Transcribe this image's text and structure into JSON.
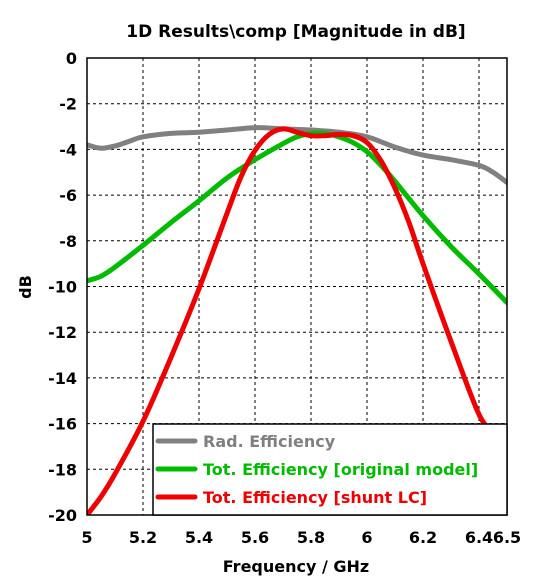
{
  "chart_data": {
    "type": "line",
    "title": "1D Results\\comp [Magnitude in dB]",
    "xlabel": "Frequency / GHz",
    "ylabel": "dB",
    "xlim": [
      5,
      6.5
    ],
    "ylim": [
      -20,
      0
    ],
    "xticks": [
      5,
      5.2,
      5.4,
      5.6,
      5.8,
      6,
      6.2,
      6.4,
      6.5
    ],
    "xtick_labels": [
      "5",
      "5.2",
      "5.4",
      "5.6",
      "5.8",
      "6",
      "6.2",
      "6.4",
      "6.5"
    ],
    "yticks": [
      0,
      -2,
      -4,
      -6,
      -8,
      -10,
      -12,
      -14,
      -16,
      -18,
      -20
    ],
    "ytick_labels": [
      "0",
      "-2",
      "-4",
      "-6",
      "-8",
      "-10",
      "-12",
      "-14",
      "-16",
      "-18",
      "-20"
    ],
    "grid": true,
    "legend_position": "bottom-right",
    "series": [
      {
        "name": "Rad. Efficiency",
        "color": "#808080",
        "x": [
          5.0,
          5.05,
          5.1,
          5.15,
          5.2,
          5.3,
          5.4,
          5.5,
          5.6,
          5.7,
          5.8,
          5.9,
          6.0,
          6.1,
          6.2,
          6.3,
          6.4,
          6.45,
          6.5
        ],
        "y": [
          -3.8,
          -3.95,
          -3.85,
          -3.65,
          -3.45,
          -3.3,
          -3.25,
          -3.15,
          -3.05,
          -3.1,
          -3.15,
          -3.25,
          -3.45,
          -3.9,
          -4.25,
          -4.45,
          -4.7,
          -5.0,
          -5.45
        ]
      },
      {
        "name": "Tot. Efficiency [original model]",
        "color": "#00bb00",
        "x": [
          5.0,
          5.05,
          5.1,
          5.2,
          5.3,
          5.4,
          5.5,
          5.6,
          5.7,
          5.75,
          5.8,
          5.85,
          5.9,
          5.95,
          6.0,
          6.05,
          6.1,
          6.2,
          6.3,
          6.4,
          6.5
        ],
        "y": [
          -9.75,
          -9.55,
          -9.15,
          -8.2,
          -7.2,
          -6.25,
          -5.25,
          -4.45,
          -3.75,
          -3.45,
          -3.3,
          -3.3,
          -3.45,
          -3.7,
          -4.1,
          -4.7,
          -5.4,
          -6.9,
          -8.25,
          -9.45,
          -10.7
        ]
      },
      {
        "name": "Tot. Efficiency [shunt LC]",
        "color": "#ee0000",
        "x": [
          5.0,
          5.05,
          5.1,
          5.2,
          5.3,
          5.4,
          5.5,
          5.55,
          5.6,
          5.65,
          5.7,
          5.75,
          5.8,
          5.85,
          5.9,
          5.95,
          6.0,
          6.05,
          6.1,
          6.15,
          6.2,
          6.3,
          6.4,
          6.45
        ],
        "y": [
          -20.0,
          -19.2,
          -18.2,
          -15.9,
          -13.1,
          -10.1,
          -6.8,
          -5.2,
          -4.05,
          -3.35,
          -3.1,
          -3.25,
          -3.4,
          -3.4,
          -3.35,
          -3.4,
          -3.7,
          -4.5,
          -5.7,
          -7.2,
          -9.0,
          -12.4,
          -15.6,
          -16.3
        ]
      }
    ]
  }
}
